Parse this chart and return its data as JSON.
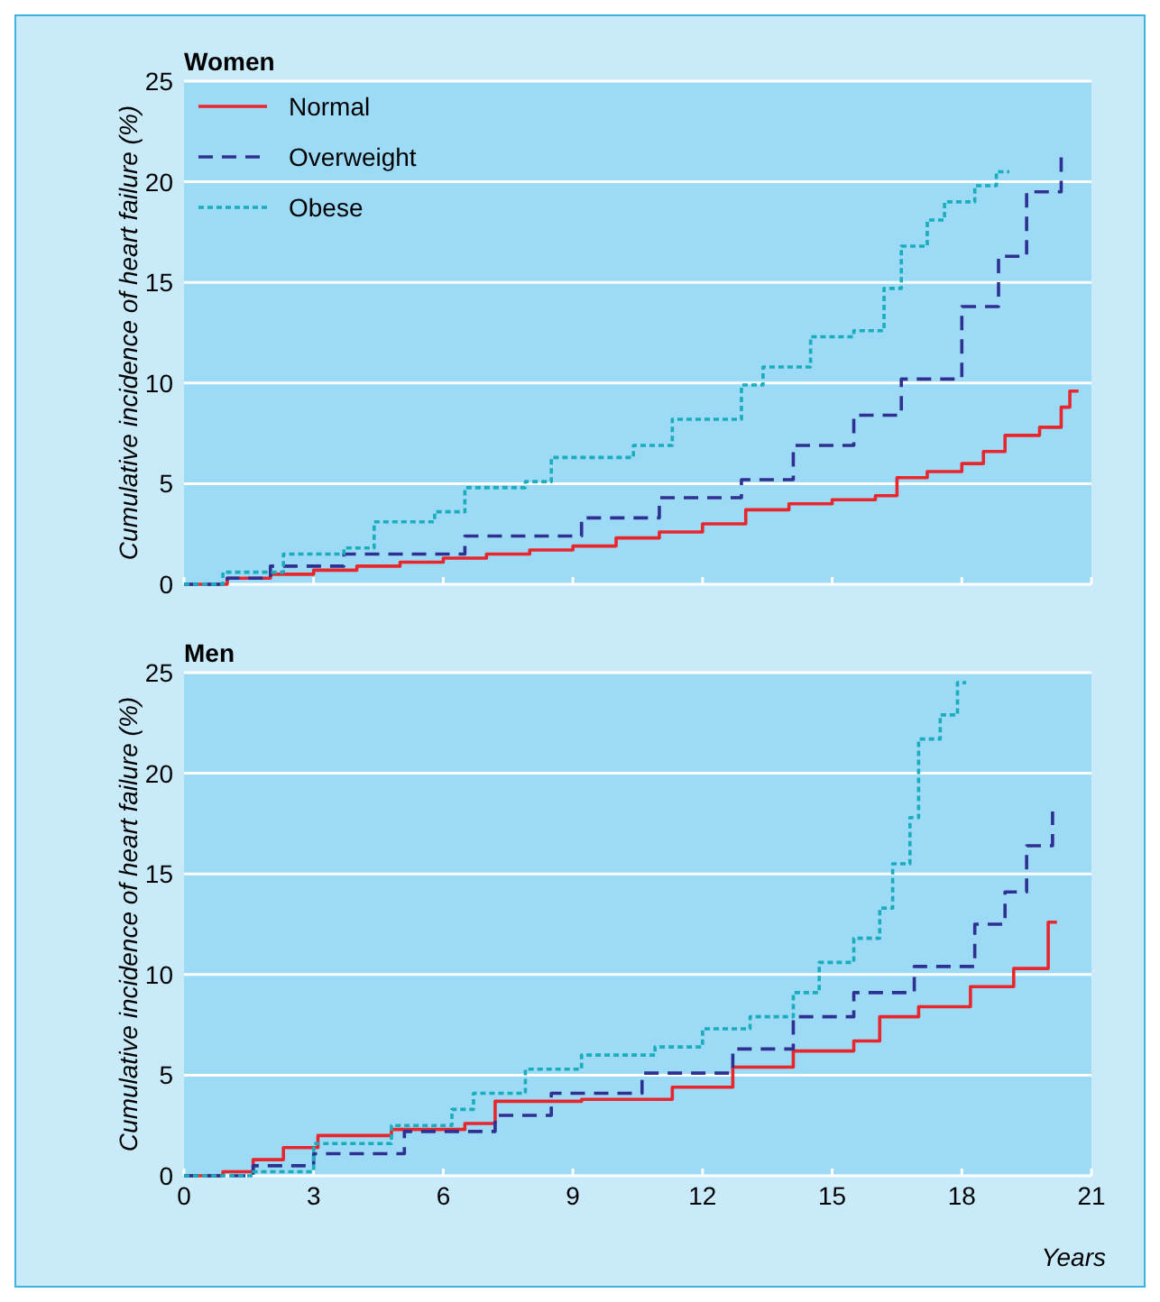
{
  "chart_data": [
    {
      "type": "step",
      "title": "Women",
      "ylabel": "Cumulative incidence of heart failure (%)",
      "xlim": [
        0,
        21
      ],
      "xticks": [
        {
          "value": 0,
          "label": null
        },
        {
          "value": 3,
          "label": null
        },
        {
          "value": 6,
          "label": null
        },
        {
          "value": 9,
          "label": null
        },
        {
          "value": 12,
          "label": null
        },
        {
          "value": 15,
          "label": null
        },
        {
          "value": 18,
          "label": null
        },
        {
          "value": 21,
          "label": null
        }
      ],
      "ylim": [
        0,
        25
      ],
      "yticks": [
        0,
        5,
        10,
        15,
        20,
        25
      ],
      "tick_labels": "y",
      "grid": "y",
      "legend": "top left",
      "series": [
        {
          "name": "Normal",
          "color": "#e8262d",
          "line_style": "solid",
          "x": [
            0,
            1,
            2,
            3,
            4,
            5,
            6,
            7,
            8,
            9,
            10,
            11,
            12,
            13,
            14,
            15,
            16,
            16.5,
            17.2,
            18,
            18.5,
            19,
            19.8,
            20.3,
            20.5,
            20.7
          ],
          "values": [
            0,
            0.3,
            0.5,
            0.7,
            0.9,
            1.1,
            1.3,
            1.5,
            1.7,
            1.9,
            2.3,
            2.6,
            3.0,
            3.7,
            4.0,
            4.2,
            4.4,
            5.3,
            5.6,
            6.0,
            6.6,
            7.4,
            7.8,
            8.8,
            9.6,
            9.6
          ]
        },
        {
          "name": "Overweight",
          "color": "#2e3192",
          "line_style": "dashed",
          "x": [
            0,
            1,
            2,
            3.7,
            6.5,
            9.2,
            11,
            12.9,
            14.1,
            15.5,
            16.6,
            18,
            18.85,
            19.5,
            20.3
          ],
          "values": [
            0,
            0.3,
            0.9,
            1.5,
            2.4,
            3.3,
            4.3,
            5.2,
            6.9,
            8.4,
            10.2,
            13.8,
            16.3,
            19.5,
            21.5
          ]
        },
        {
          "name": "Obese",
          "color": "#1aadbd",
          "line_style": "dotted",
          "x": [
            0,
            0.9,
            2.3,
            3.7,
            4.4,
            5.8,
            6.5,
            7.9,
            8.5,
            10.4,
            11.3,
            12.9,
            13.4,
            14.5,
            15.5,
            16.2,
            16.6,
            17.2,
            17.6,
            18.3,
            18.8,
            19.1
          ],
          "values": [
            0,
            0.6,
            1.5,
            1.8,
            3.1,
            3.6,
            4.8,
            5.1,
            6.3,
            6.9,
            8.2,
            9.9,
            10.8,
            12.3,
            12.6,
            14.7,
            16.8,
            18.1,
            19.0,
            19.8,
            20.5,
            20.5
          ]
        }
      ]
    },
    {
      "type": "step",
      "title": "Men",
      "xlabel": "Years",
      "ylabel": "Cumulative incidence of heart failure (%)",
      "xlim": [
        0,
        21
      ],
      "xticks": [
        0,
        3,
        6,
        9,
        12,
        15,
        18,
        21
      ],
      "ylim": [
        0,
        25
      ],
      "yticks": [
        0,
        5,
        10,
        15,
        20,
        25
      ],
      "grid": "y",
      "series": [
        {
          "color": "#e8262d",
          "line_style": "solid",
          "x": [
            0,
            0.9,
            1.6,
            2.3,
            3.1,
            4.8,
            6.5,
            7.2,
            9.2,
            11.3,
            12.7,
            14.1,
            15.5,
            16.1,
            17,
            18.2,
            19.2,
            20,
            20.2
          ],
          "values": [
            0,
            0.2,
            0.8,
            1.4,
            2.0,
            2.3,
            2.6,
            3.7,
            3.8,
            4.4,
            5.4,
            6.2,
            6.7,
            7.9,
            8.4,
            9.4,
            10.3,
            12.6,
            12.6
          ]
        },
        {
          "color": "#2e3192",
          "line_style": "dashed",
          "x": [
            0,
            1.6,
            3,
            5.1,
            7.2,
            8.5,
            10.6,
            12.7,
            14.1,
            15.5,
            16.9,
            18.3,
            19,
            19.5,
            20.1
          ],
          "values": [
            0,
            0.5,
            1.1,
            2.2,
            3.0,
            4.1,
            5.1,
            6.3,
            7.9,
            9.1,
            10.4,
            12.5,
            14.1,
            16.4,
            18.1
          ]
        },
        {
          "color": "#1aadbd",
          "line_style": "dotted",
          "x": [
            0,
            1.6,
            3,
            4.8,
            6.2,
            6.7,
            7.9,
            9.2,
            10.9,
            12,
            13.1,
            14.1,
            14.7,
            15.5,
            16.1,
            16.4,
            16.8,
            17,
            17.5,
            17.9,
            18.1
          ],
          "values": [
            0,
            0.2,
            1.6,
            2.5,
            3.3,
            4.1,
            5.3,
            6.0,
            6.4,
            7.3,
            7.9,
            9.1,
            10.6,
            11.8,
            13.3,
            15.5,
            17.8,
            21.7,
            22.9,
            24.5,
            24.5
          ]
        }
      ]
    }
  ]
}
